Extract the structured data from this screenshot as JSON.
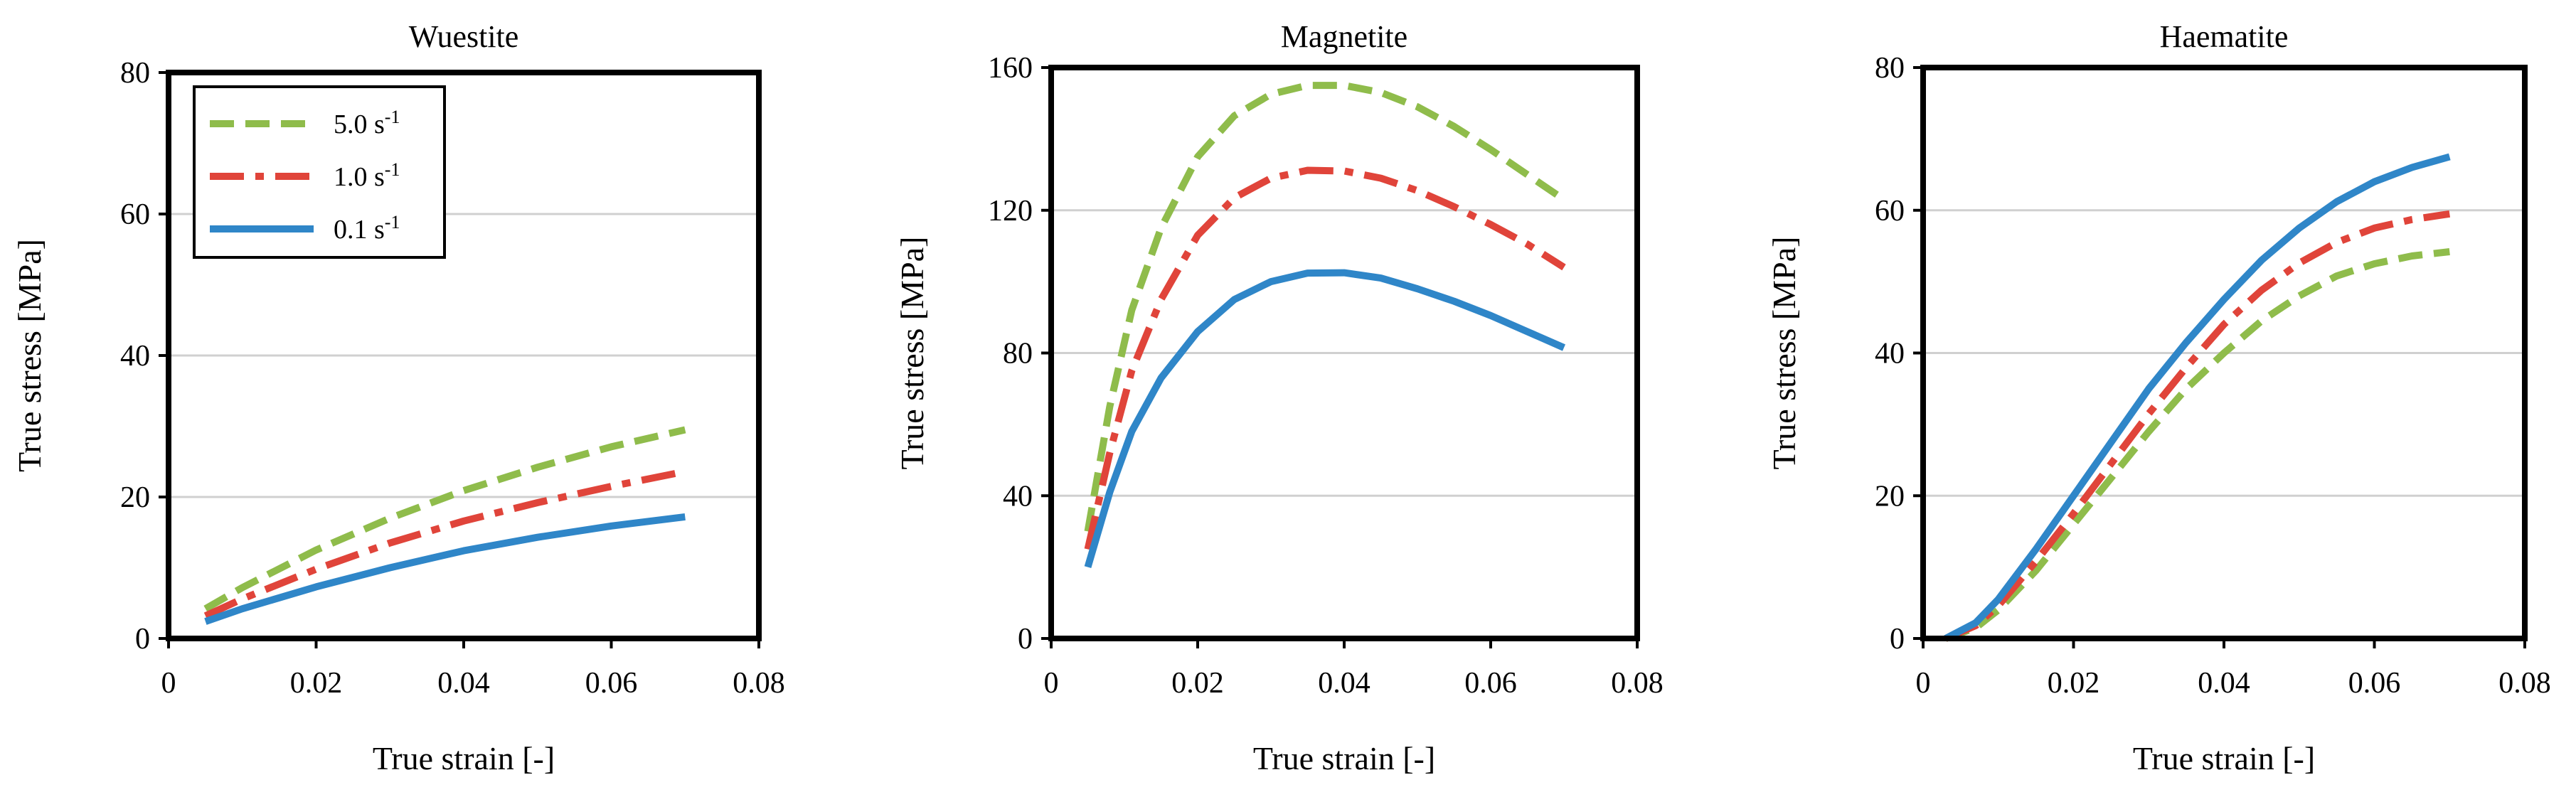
{
  "chart_data": [
    {
      "type": "line",
      "title": "Wuestite",
      "xlabel": "True strain [-]",
      "ylabel": "True stress [MPa]",
      "xlim": [
        0,
        0.08
      ],
      "ylim": [
        0,
        80
      ],
      "xticks": [
        0,
        0.02,
        0.04,
        0.06,
        0.08
      ],
      "xtick_labels": [
        "0",
        "0.02",
        "0.04",
        "0.06",
        "0.08"
      ],
      "yticks": [
        0,
        20,
        40,
        60,
        80
      ],
      "ytick_labels": [
        "0",
        "20",
        "40",
        "60",
        "80"
      ],
      "grid": true,
      "legend": {
        "position": "top-left",
        "entries": [
          {
            "label": "5.0 s",
            "superscript": "-1",
            "series": 0
          },
          {
            "label": "1.0 s",
            "superscript": "-1",
            "series": 1
          },
          {
            "label": "0.1 s",
            "superscript": "-1",
            "series": 2
          }
        ]
      },
      "series": [
        {
          "name": "5.0 s-1",
          "color": "#8fbc4b",
          "dash": "dashed",
          "points": [
            [
              0.005,
              4.2
            ],
            [
              0.01,
              7.2
            ],
            [
              0.02,
              12.5
            ],
            [
              0.03,
              17.0
            ],
            [
              0.04,
              20.9
            ],
            [
              0.05,
              24.2
            ],
            [
              0.06,
              27.1
            ],
            [
              0.07,
              29.5
            ]
          ]
        },
        {
          "name": "1.0 s-1",
          "color": "#e0443a",
          "dash": "dashdot",
          "points": [
            [
              0.005,
              3.2
            ],
            [
              0.01,
              5.6
            ],
            [
              0.02,
              9.8
            ],
            [
              0.03,
              13.5
            ],
            [
              0.04,
              16.6
            ],
            [
              0.05,
              19.2
            ],
            [
              0.06,
              21.5
            ],
            [
              0.07,
              23.6
            ]
          ]
        },
        {
          "name": "0.1 s-1",
          "color": "#2f86c8",
          "dash": "solid",
          "points": [
            [
              0.005,
              2.4
            ],
            [
              0.01,
              4.2
            ],
            [
              0.02,
              7.3
            ],
            [
              0.03,
              10.0
            ],
            [
              0.04,
              12.4
            ],
            [
              0.05,
              14.3
            ],
            [
              0.06,
              15.9
            ],
            [
              0.07,
              17.2
            ]
          ]
        }
      ]
    },
    {
      "type": "line",
      "title": "Magnetite",
      "xlabel": "True strain [-]",
      "ylabel": "True stress [MPa]",
      "xlim": [
        0,
        0.08
      ],
      "ylim": [
        0,
        160
      ],
      "xticks": [
        0,
        0.02,
        0.04,
        0.06,
        0.08
      ],
      "xtick_labels": [
        "0",
        "0.02",
        "0.04",
        "0.06",
        "0.08"
      ],
      "yticks": [
        0,
        40,
        80,
        120,
        160
      ],
      "ytick_labels": [
        "0",
        "40",
        "80",
        "120",
        "160"
      ],
      "grid": true,
      "series": [
        {
          "name": "5.0 s-1",
          "color": "#8fbc4b",
          "dash": "dashed",
          "points": [
            [
              0.005,
              30
            ],
            [
              0.008,
              65
            ],
            [
              0.011,
              92
            ],
            [
              0.015,
              115
            ],
            [
              0.02,
              135
            ],
            [
              0.025,
              146.5
            ],
            [
              0.03,
              152.5
            ],
            [
              0.035,
              155
            ],
            [
              0.04,
              155
            ],
            [
              0.045,
              153
            ],
            [
              0.05,
              149
            ],
            [
              0.055,
              143.5
            ],
            [
              0.06,
              137
            ],
            [
              0.065,
              130
            ],
            [
              0.07,
              123
            ]
          ]
        },
        {
          "name": "1.0 s-1",
          "color": "#e0443a",
          "dash": "dashdot",
          "points": [
            [
              0.005,
              25
            ],
            [
              0.008,
              52
            ],
            [
              0.011,
              75
            ],
            [
              0.015,
              95
            ],
            [
              0.02,
              113
            ],
            [
              0.025,
              123.5
            ],
            [
              0.03,
              129
            ],
            [
              0.035,
              131.2
            ],
            [
              0.04,
              131
            ],
            [
              0.045,
              129
            ],
            [
              0.05,
              125.5
            ],
            [
              0.055,
              121
            ],
            [
              0.06,
              116
            ],
            [
              0.065,
              110.5
            ],
            [
              0.07,
              104
            ]
          ]
        },
        {
          "name": "0.1 s-1",
          "color": "#2f86c8",
          "dash": "solid",
          "points": [
            [
              0.005,
              20
            ],
            [
              0.008,
              41
            ],
            [
              0.011,
              58
            ],
            [
              0.015,
              73
            ],
            [
              0.02,
              86
            ],
            [
              0.025,
              95
            ],
            [
              0.03,
              100
            ],
            [
              0.035,
              102.4
            ],
            [
              0.04,
              102.5
            ],
            [
              0.045,
              101
            ],
            [
              0.05,
              98
            ],
            [
              0.055,
              94.5
            ],
            [
              0.06,
              90.5
            ],
            [
              0.065,
              86
            ],
            [
              0.07,
              81.5
            ]
          ]
        }
      ]
    },
    {
      "type": "line",
      "title": "Haematite",
      "xlabel": "True strain [-]",
      "ylabel": "True stress [MPa]",
      "xlim": [
        0,
        0.08
      ],
      "ylim": [
        0,
        80
      ],
      "xticks": [
        0,
        0.02,
        0.04,
        0.06,
        0.08
      ],
      "xtick_labels": [
        "0",
        "0.02",
        "0.04",
        "0.06",
        "0.08"
      ],
      "yticks": [
        0,
        20,
        40,
        60,
        80
      ],
      "ytick_labels": [
        "0",
        "20",
        "40",
        "60",
        "80"
      ],
      "grid": true,
      "series": [
        {
          "name": "5.0 s-1",
          "color": "#8fbc4b",
          "dash": "dashed",
          "points": [
            [
              0.003,
              0
            ],
            [
              0.007,
              1.5
            ],
            [
              0.01,
              4.0
            ],
            [
              0.015,
              9.5
            ],
            [
              0.02,
              16.0
            ],
            [
              0.025,
              22.5
            ],
            [
              0.03,
              29.0
            ],
            [
              0.035,
              35.0
            ],
            [
              0.04,
              40.0
            ],
            [
              0.045,
              44.5
            ],
            [
              0.05,
              48.0
            ],
            [
              0.055,
              50.8
            ],
            [
              0.06,
              52.5
            ],
            [
              0.065,
              53.6
            ],
            [
              0.07,
              54.2
            ]
          ]
        },
        {
          "name": "1.0 s-1",
          "color": "#e0443a",
          "dash": "dashdot",
          "points": [
            [
              0.003,
              0
            ],
            [
              0.007,
              1.8
            ],
            [
              0.01,
              4.6
            ],
            [
              0.015,
              10.8
            ],
            [
              0.02,
              17.5
            ],
            [
              0.025,
              24.5
            ],
            [
              0.03,
              31.5
            ],
            [
              0.035,
              38.0
            ],
            [
              0.04,
              44.0
            ],
            [
              0.045,
              48.8
            ],
            [
              0.05,
              52.6
            ],
            [
              0.055,
              55.5
            ],
            [
              0.06,
              57.5
            ],
            [
              0.065,
              58.7
            ],
            [
              0.07,
              59.5
            ]
          ]
        },
        {
          "name": "0.1 s-1",
          "color": "#2f86c8",
          "dash": "solid",
          "points": [
            [
              0.003,
              0
            ],
            [
              0.007,
              2.2
            ],
            [
              0.01,
              5.5
            ],
            [
              0.015,
              12.5
            ],
            [
              0.02,
              20.0
            ],
            [
              0.025,
              27.5
            ],
            [
              0.03,
              35.0
            ],
            [
              0.035,
              41.5
            ],
            [
              0.04,
              47.5
            ],
            [
              0.045,
              53.0
            ],
            [
              0.05,
              57.5
            ],
            [
              0.055,
              61.2
            ],
            [
              0.06,
              64.0
            ],
            [
              0.065,
              66.0
            ],
            [
              0.07,
              67.5
            ]
          ]
        }
      ]
    }
  ]
}
